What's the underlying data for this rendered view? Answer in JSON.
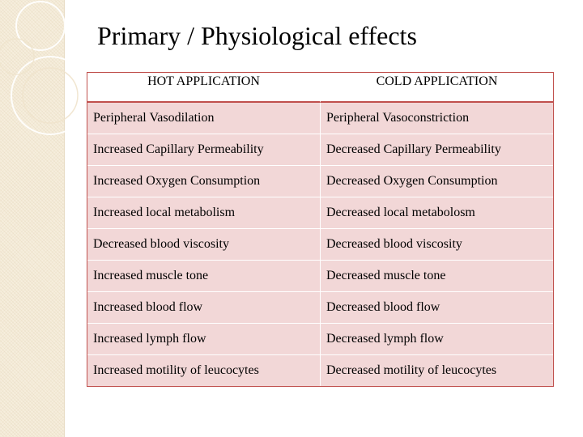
{
  "slide": {
    "title": "Primary / Physiological effects"
  },
  "table": {
    "headers": [
      "HOT APPLICATION",
      "COLD APPLICATION"
    ],
    "rows": [
      [
        "Peripheral Vasodilation",
        "Peripheral Vasoconstriction"
      ],
      [
        "Increased Capillary Permeability",
        "Decreased Capillary Permeability"
      ],
      [
        "Increased Oxygen Consumption",
        "Decreased Oxygen Consumption"
      ],
      [
        "Increased local metabolism",
        "Decreased local metabolosm"
      ],
      [
        "Decreased blood viscosity",
        "Decreased blood viscosity"
      ],
      [
        "Increased muscle tone",
        "Decreased muscle tone"
      ],
      [
        "Increased blood flow",
        "Decreased blood flow"
      ],
      [
        "Increased lymph flow",
        "Decreased lymph flow"
      ],
      [
        "Increased motility of leucocytes",
        "Decreased motility of leucocytes"
      ]
    ]
  },
  "colors": {
    "accent": "#c0504d",
    "row_fill": "#f2d7d7",
    "side_strip": "#f6eedd"
  }
}
